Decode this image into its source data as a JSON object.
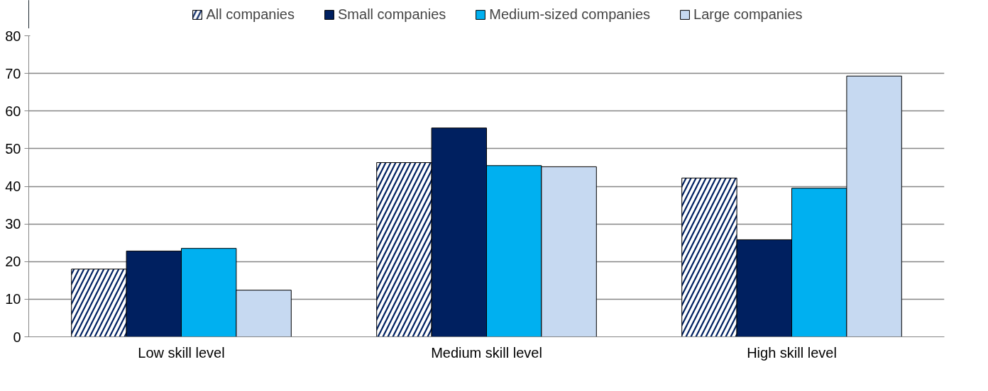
{
  "chart_data": {
    "type": "bar",
    "categories": [
      "Low skill level",
      "Medium skill level",
      "High skill level"
    ],
    "series": [
      {
        "name": "All companies",
        "color": "#002060",
        "values": [
          18,
          46.3,
          42.2
        ]
      },
      {
        "name": "Small companies",
        "color": "#002060",
        "values": [
          22.8,
          55.5,
          25.8
        ]
      },
      {
        "name": "Medium-sized companies",
        "color": "#00b0f0",
        "values": [
          23.5,
          45.5,
          39.5
        ]
      },
      {
        "name": "Large companies",
        "color": "#c6d9f1",
        "values": [
          12.4,
          45.2,
          69.3
        ]
      }
    ],
    "ylim": [
      0,
      80
    ],
    "yticks": [
      0,
      10,
      20,
      30,
      40,
      50,
      60,
      70,
      80
    ],
    "grid": "y",
    "legend": "top"
  }
}
